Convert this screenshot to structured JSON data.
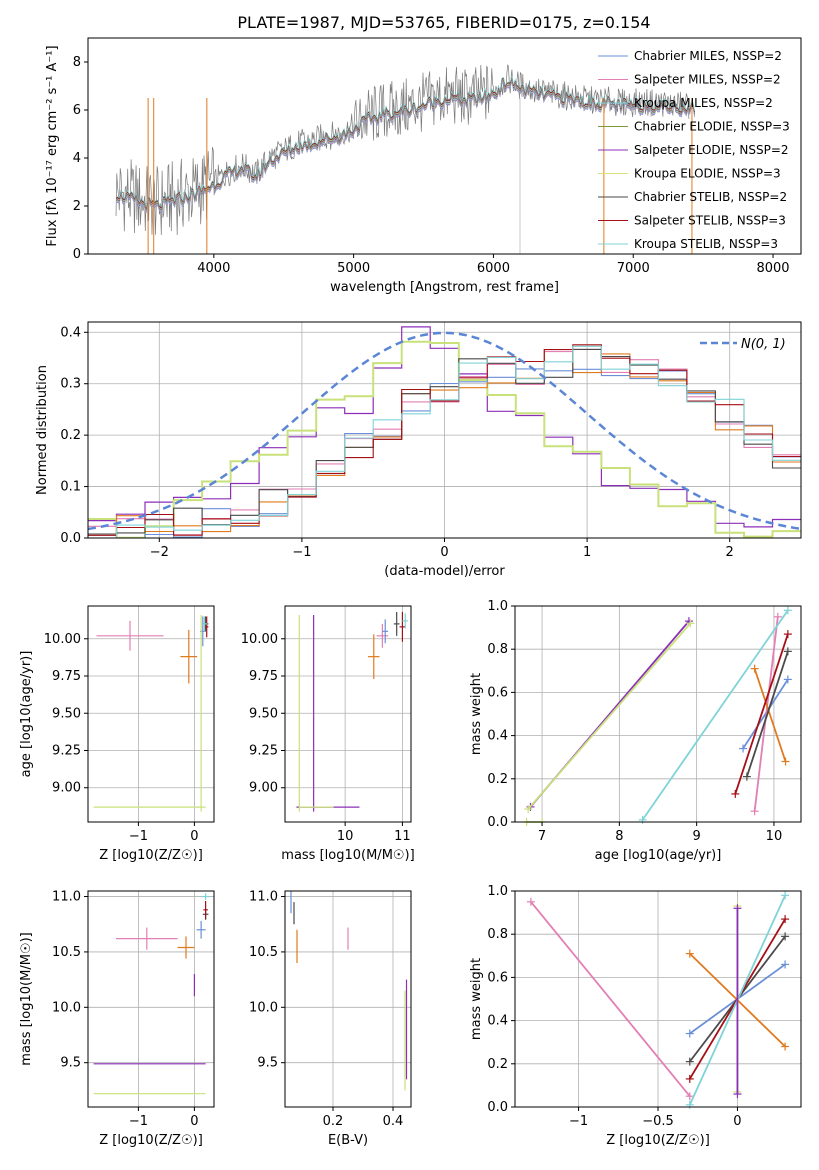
{
  "figure_title": "PLATE=1987, MJD=53765, FIBERID=0175, z=0.154",
  "colors": [
    "#6a8fd8",
    "#e27fb4",
    "#c9e17a",
    "#7b9a3c",
    "#8b2fb8",
    "#d8e07a",
    "#4a4a4a",
    "#a50f15",
    "#7fd3d6",
    "#e07a1f",
    "#7a7a7a"
  ],
  "chart_data": [
    {
      "id": "spectrum",
      "type": "line",
      "xlabel": "wavelength [Angstrom, rest frame]",
      "ylabel": "Flux [fλ 10⁻¹⁷ erg cm⁻² s⁻¹ A⁻¹]",
      "xlim": [
        3100,
        8200
      ],
      "ylim": [
        0,
        9
      ],
      "xticks": [
        4000,
        5000,
        6000,
        7000,
        8000
      ],
      "yticks": [
        0,
        2,
        4,
        6,
        8
      ],
      "grid": false,
      "legend_position": "top-right",
      "legend": [
        "Chabrier MILES, NSSP=2",
        "Salpeter MILES, NSSP=2",
        "Kroupa MILES, NSSP=2",
        "Chabrier ELODIE, NSSP=3",
        "Salpeter ELODIE, NSSP=2",
        "Kroupa ELODIE, NSSP=3",
        "Chabrier STELIB, NSSP=2",
        "Salpeter STELIB, NSSP=3",
        "Kroupa STELIB, NSSP=3"
      ],
      "data_x": [
        3300,
        3400,
        3500,
        3600,
        3700,
        3800,
        3900,
        4000,
        4100,
        4200,
        4300,
        4400,
        4500,
        4600,
        4700,
        4800,
        4900,
        5000,
        5100,
        5200,
        5300,
        5400,
        5500,
        5600,
        5700,
        5800,
        5900,
        6000,
        6100,
        6200,
        6300,
        6400,
        6500,
        6600,
        6700,
        6800,
        6900,
        7000,
        7100,
        7200,
        7300,
        7400
      ],
      "data_y": [
        2.6,
        2.4,
        2.2,
        2.1,
        2.3,
        2.5,
        2.7,
        3.0,
        3.4,
        3.7,
        3.3,
        4.0,
        4.3,
        4.6,
        4.7,
        4.9,
        5.0,
        5.3,
        5.7,
        5.9,
        6.0,
        6.1,
        6.3,
        6.5,
        6.6,
        6.5,
        6.6,
        6.8,
        7.3,
        7.0,
        6.8,
        6.7,
        6.6,
        6.5,
        6.4,
        6.4,
        6.3,
        6.3,
        6.3,
        6.3,
        6.2,
        6.2
      ]
    },
    {
      "id": "residuals",
      "type": "area",
      "xlabel": "(data-model)/error",
      "ylabel": "Normed distribution",
      "xlim": [
        -2.5,
        2.5
      ],
      "ylim": [
        0,
        0.42
      ],
      "xticks": [
        -2,
        -1,
        0,
        1,
        2
      ],
      "yticks": [
        0.0,
        0.1,
        0.2,
        0.3,
        0.4
      ],
      "grid": true,
      "legend_position": "top-right",
      "legend": [
        "N(0, 1)"
      ],
      "hist_x": [
        -2.5,
        -2.3,
        -2.1,
        -1.9,
        -1.7,
        -1.5,
        -1.3,
        -1.1,
        -0.9,
        -0.7,
        -0.5,
        -0.3,
        -0.1,
        0.1,
        0.3,
        0.5,
        0.7,
        0.9,
        1.1,
        1.3,
        1.5,
        1.7,
        1.9,
        2.1,
        2.3
      ],
      "hist_wide": [
        0.02,
        0.03,
        0.04,
        0.06,
        0.09,
        0.12,
        0.16,
        0.2,
        0.24,
        0.27,
        0.34,
        0.39,
        0.36,
        0.3,
        0.26,
        0.22,
        0.18,
        0.15,
        0.12,
        0.1,
        0.08,
        0.06,
        0.04,
        0.03,
        0.03
      ],
      "hist_shifted": [
        0.01,
        0.02,
        0.02,
        0.03,
        0.04,
        0.05,
        0.07,
        0.1,
        0.14,
        0.18,
        0.22,
        0.26,
        0.29,
        0.32,
        0.33,
        0.32,
        0.34,
        0.35,
        0.34,
        0.33,
        0.32,
        0.28,
        0.24,
        0.19,
        0.15
      ]
    },
    {
      "id": "age-vs-z",
      "type": "scatter",
      "xlabel": "Z [log10(Z/Z☉)]",
      "ylabel": "age  [log10(age/yr)]",
      "xlim": [
        -1.9,
        0.35
      ],
      "ylim": [
        8.77,
        10.22
      ],
      "xticks": [
        -1,
        0
      ],
      "yticks": [
        9.0,
        9.25,
        9.5,
        9.75,
        10.0
      ],
      "grid": true
    },
    {
      "id": "age-vs-mass",
      "type": "scatter",
      "xlabel": "mass [log10(M/M☉)]",
      "ylabel": "",
      "xlim": [
        8.95,
        11.15
      ],
      "ylim": [
        8.77,
        10.22
      ],
      "xticks": [
        10,
        11
      ],
      "yticks": [
        9.0,
        9.25,
        9.5,
        9.75,
        10.0
      ],
      "grid": true
    },
    {
      "id": "weight-vs-age",
      "type": "line",
      "xlabel": "age  [log10(age/yr)]",
      "ylabel": "mass weight",
      "xlim": [
        6.65,
        10.35
      ],
      "ylim": [
        0,
        1
      ],
      "xticks": [
        7,
        8,
        9,
        10
      ],
      "yticks": [
        0.0,
        0.2,
        0.4,
        0.6,
        0.8,
        1.0
      ],
      "grid": true
    },
    {
      "id": "mass-vs-z",
      "type": "scatter",
      "xlabel": "Z [log10(Z/Z☉)]",
      "ylabel": "mass [log10(M/M☉)]",
      "xlim": [
        -1.9,
        0.35
      ],
      "ylim": [
        9.1,
        11.05
      ],
      "xticks": [
        -1,
        0
      ],
      "yticks": [
        9.5,
        10.0,
        10.5,
        11.0
      ],
      "grid": true
    },
    {
      "id": "mass-vs-ebv",
      "type": "scatter",
      "xlabel": "E(B-V)",
      "ylabel": "",
      "xlim": [
        0.04,
        0.46
      ],
      "ylim": [
        9.1,
        11.05
      ],
      "xticks": [
        0.2,
        0.4
      ],
      "yticks": [
        9.5,
        10.0,
        10.5,
        11.0
      ],
      "grid": true
    },
    {
      "id": "weight-vs-z",
      "type": "line",
      "xlabel": "Z [log10(Z/Z☉)]",
      "ylabel": "mass weight",
      "xlim": [
        -1.4,
        0.4
      ],
      "ylim": [
        0,
        1
      ],
      "xticks": [
        -1.0,
        -0.5,
        0.0
      ],
      "yticks": [
        0.0,
        0.2,
        0.4,
        0.6,
        0.8,
        1.0
      ],
      "grid": true
    }
  ]
}
